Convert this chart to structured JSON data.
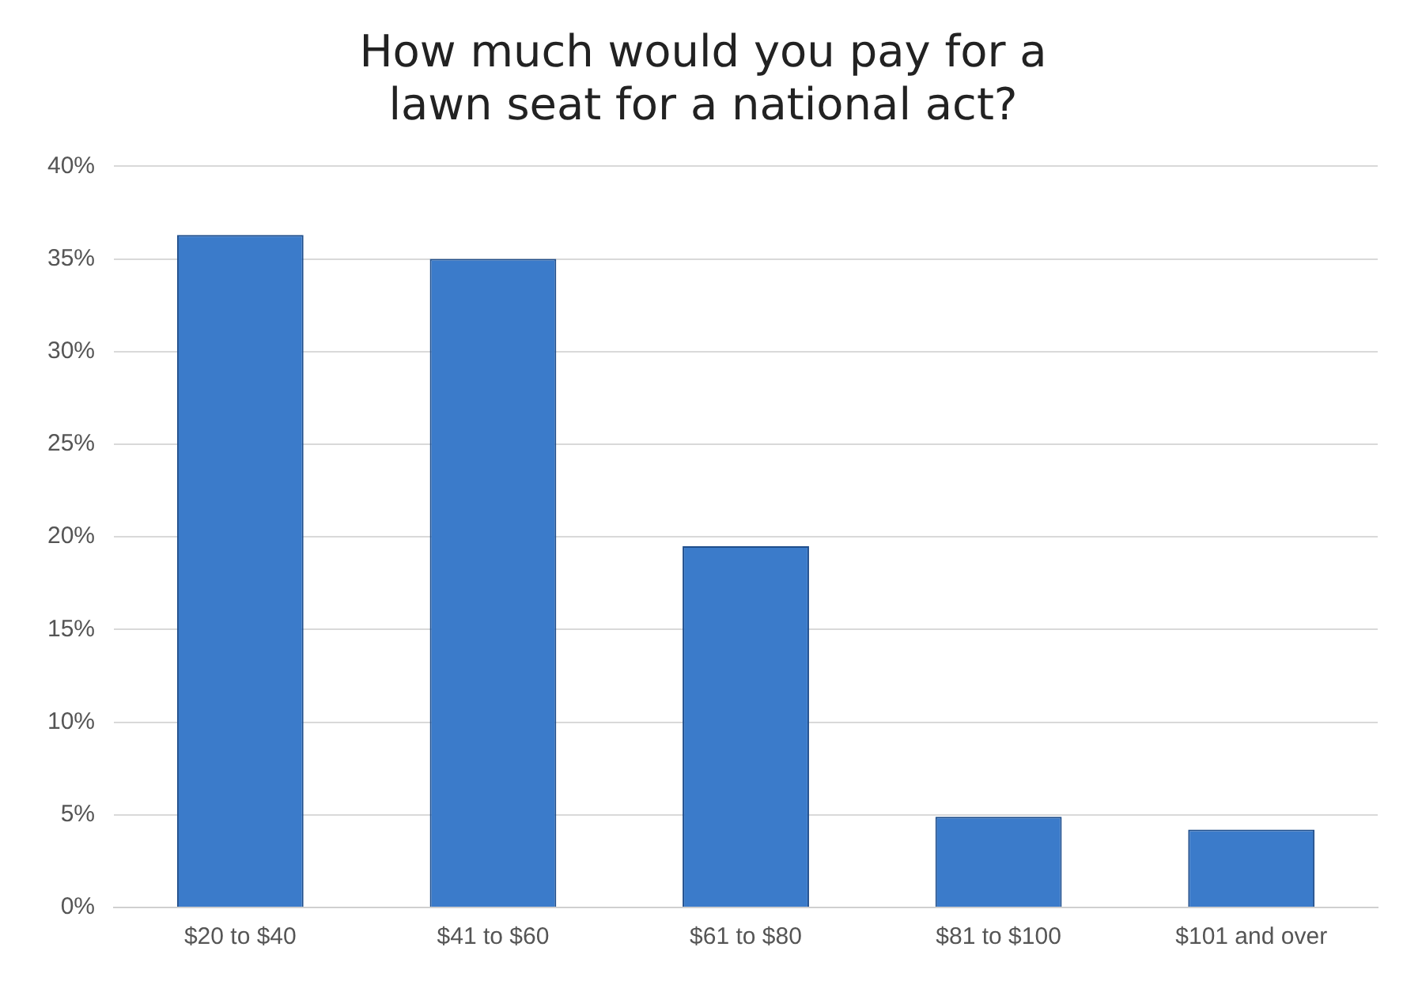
{
  "chart_data": {
    "type": "bar",
    "title": [
      "How much would you pay for a",
      "lawn seat for a national act?"
    ],
    "categories": [
      "$20 to $40",
      "$41 to $60",
      "$61 to $80",
      "$81 to $100",
      "$101 and over"
    ],
    "values": [
      36.3,
      35.0,
      19.5,
      4.9,
      4.2
    ],
    "color": "#3b7bca",
    "ylim": [
      0,
      40
    ],
    "yticks": [
      {
        "value": 0,
        "label": "0%"
      },
      {
        "value": 5,
        "label": "5%"
      },
      {
        "value": 10,
        "label": "10%"
      },
      {
        "value": 15,
        "label": "15%"
      },
      {
        "value": 20,
        "label": "20%"
      },
      {
        "value": 25,
        "label": "25%"
      },
      {
        "value": 30,
        "label": "30%"
      },
      {
        "value": 35,
        "label": "35%"
      },
      {
        "value": 40,
        "label": "40%"
      }
    ],
    "grid": "y",
    "legend": false
  }
}
